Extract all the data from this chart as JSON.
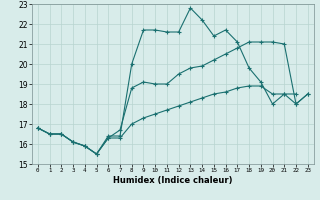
{
  "xlabel": "Humidex (Indice chaleur)",
  "xlim": [
    -0.5,
    23.5
  ],
  "ylim": [
    15,
    23
  ],
  "yticks": [
    15,
    16,
    17,
    18,
    19,
    20,
    21,
    22,
    23
  ],
  "xticks": [
    0,
    1,
    2,
    3,
    4,
    5,
    6,
    7,
    8,
    9,
    10,
    11,
    12,
    13,
    14,
    15,
    16,
    17,
    18,
    19,
    20,
    21,
    22,
    23
  ],
  "line_color": "#1a7070",
  "bg_color": "#d8ecea",
  "grid_color": "#b8d4d0",
  "line1_x": [
    0,
    1,
    2,
    3,
    4,
    5,
    6,
    7,
    8,
    9,
    10,
    11,
    12,
    13,
    14,
    15,
    16,
    17,
    18,
    19,
    20,
    21,
    22
  ],
  "line1_y": [
    16.8,
    16.5,
    16.5,
    16.1,
    15.9,
    15.5,
    16.4,
    16.4,
    20.0,
    21.7,
    21.7,
    21.6,
    21.6,
    22.8,
    22.2,
    21.4,
    21.7,
    21.1,
    19.8,
    19.1,
    18.0,
    18.5,
    18.5
  ],
  "line2_x": [
    0,
    1,
    2,
    3,
    4,
    5,
    6,
    7,
    8,
    9,
    10,
    11,
    12,
    13,
    14,
    15,
    16,
    17,
    18,
    19,
    20,
    21,
    22,
    23
  ],
  "line2_y": [
    16.8,
    16.5,
    16.5,
    16.1,
    15.9,
    15.5,
    16.3,
    16.7,
    18.8,
    19.1,
    19.0,
    19.0,
    19.5,
    19.8,
    19.9,
    20.2,
    20.5,
    20.8,
    21.1,
    21.1,
    21.1,
    21.0,
    18.0,
    18.5
  ],
  "line3_x": [
    0,
    1,
    2,
    3,
    4,
    5,
    6,
    7,
    8,
    9,
    10,
    11,
    12,
    13,
    14,
    15,
    16,
    17,
    18,
    19,
    20,
    21,
    22,
    23
  ],
  "line3_y": [
    16.8,
    16.5,
    16.5,
    16.1,
    15.9,
    15.5,
    16.3,
    16.3,
    17.0,
    17.3,
    17.5,
    17.7,
    17.9,
    18.1,
    18.3,
    18.5,
    18.6,
    18.8,
    18.9,
    18.9,
    18.5,
    18.5,
    18.0,
    18.5
  ]
}
